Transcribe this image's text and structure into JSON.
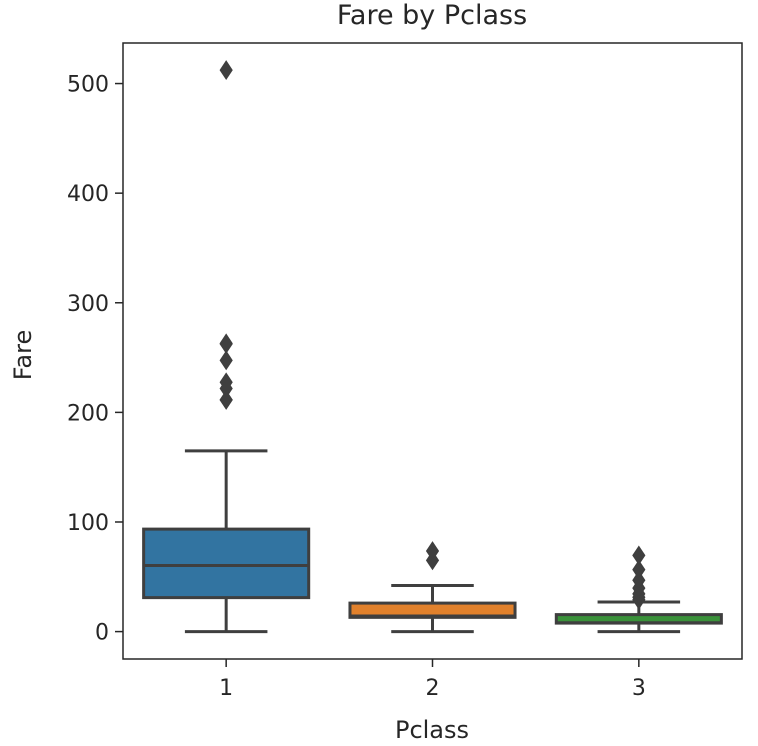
{
  "chart_data": {
    "type": "box",
    "title": "Fare by Pclass",
    "xlabel": "Pclass",
    "ylabel": "Fare",
    "categories": [
      "1",
      "2",
      "3"
    ],
    "ylim": [
      -25,
      537
    ],
    "yticks": [
      0,
      100,
      200,
      300,
      400,
      500
    ],
    "grid": false,
    "boxes": [
      {
        "category": "1",
        "color": "#3274a1",
        "whisker_low": 0,
        "q1": 31,
        "median": 60.3,
        "q3": 93.5,
        "whisker_high": 164.9,
        "outliers": [
          211.3,
          211.5,
          221.8,
          227.5,
          247.5,
          262.4,
          263.0,
          512.3
        ]
      },
      {
        "category": "2",
        "color": "#e1812c",
        "whisker_low": 0,
        "q1": 13,
        "median": 14.25,
        "q3": 26,
        "whisker_high": 42,
        "outliers": [
          65,
          73.5
        ]
      },
      {
        "category": "3",
        "color": "#3a923a",
        "whisker_low": 0,
        "q1": 7.75,
        "median": 8.05,
        "q3": 15.5,
        "whisker_high": 27,
        "outliers": [
          29.1,
          31.3,
          34.4,
          39.7,
          46.9,
          56.5,
          69.55
        ]
      }
    ]
  }
}
